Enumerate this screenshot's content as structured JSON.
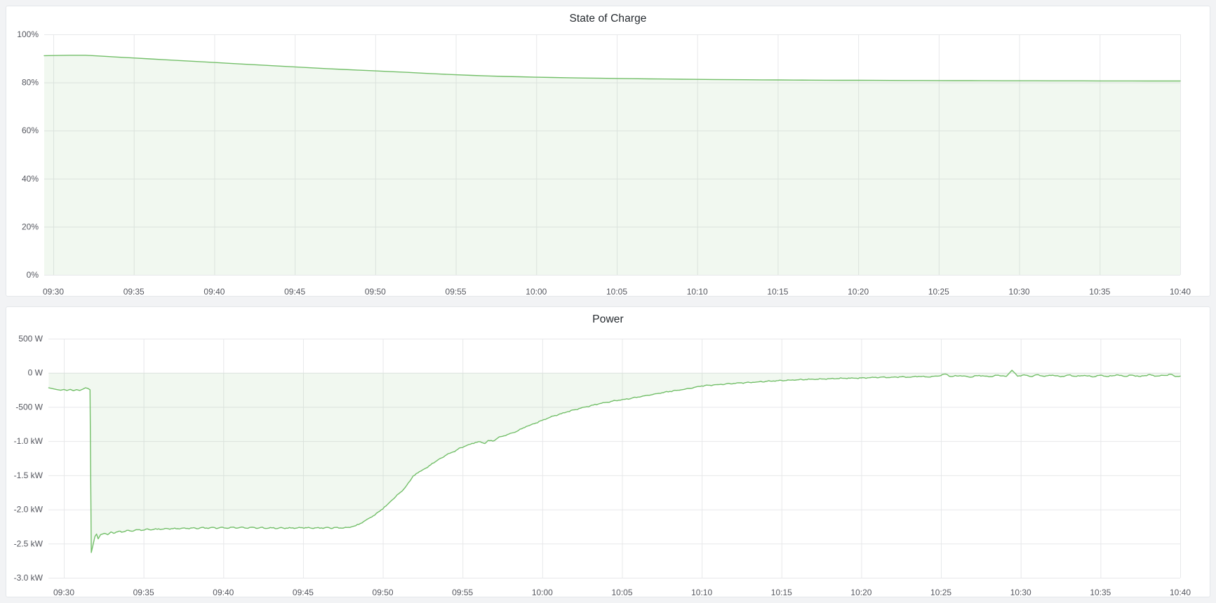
{
  "page": {
    "background_color": "#f2f3f5",
    "panel_background": "#ffffff",
    "grid_color": "#e7e8ea",
    "accent_green": "#73bf69"
  },
  "chart_data": [
    {
      "type": "area",
      "title": "State of Charge",
      "series_name": "State of Charge",
      "line_color": "#73bf69",
      "fill_color": "rgba(115,191,105,0.10)",
      "fill_baseline": 0,
      "noise_amplitude": 0,
      "legend_position": "none",
      "grid": true,
      "y_axis": {
        "min": 0,
        "max": 100,
        "tick_values": [
          100,
          80,
          60,
          40,
          20,
          0
        ],
        "tick_labels": [
          "100%",
          "80%",
          "60%",
          "40%",
          "20%",
          "0%"
        ]
      },
      "x_axis": {
        "start": "09:30",
        "end": "10:40",
        "tick_minutes": [
          0,
          5,
          10,
          15,
          20,
          25,
          30,
          35,
          40,
          45,
          50,
          55,
          60,
          65,
          70
        ],
        "tick_labels": [
          "09:30",
          "09:35",
          "09:40",
          "09:45",
          "09:50",
          "09:55",
          "10:00",
          "10:05",
          "10:10",
          "10:15",
          "10:20",
          "10:25",
          "10:30",
          "10:35",
          "10:40"
        ]
      },
      "points": [
        [
          -0.6,
          91.15
        ],
        [
          0,
          91.2
        ],
        [
          1,
          91.3
        ],
        [
          1.6,
          91.32
        ],
        [
          2,
          91.3
        ],
        [
          3,
          90.92
        ],
        [
          4,
          90.55
        ],
        [
          5,
          90.18
        ],
        [
          6,
          89.8
        ],
        [
          7,
          89.42
        ],
        [
          8,
          89.05
        ],
        [
          9,
          88.68
        ],
        [
          10,
          88.3
        ],
        [
          11,
          87.93
        ],
        [
          12,
          87.56
        ],
        [
          13,
          87.2
        ],
        [
          14,
          86.83
        ],
        [
          15,
          86.46
        ],
        [
          16,
          86.1
        ],
        [
          17,
          85.75
        ],
        [
          18,
          85.42
        ],
        [
          19,
          85.1
        ],
        [
          20,
          84.8
        ],
        [
          21,
          84.5
        ],
        [
          22,
          84.2
        ],
        [
          23,
          83.85
        ],
        [
          24,
          83.5
        ],
        [
          25,
          83.2
        ],
        [
          26,
          82.95
        ],
        [
          27,
          82.72
        ],
        [
          28,
          82.52
        ],
        [
          29,
          82.35
        ],
        [
          30,
          82.2
        ],
        [
          31,
          82.06
        ],
        [
          32,
          81.94
        ],
        [
          33,
          81.84
        ],
        [
          34,
          81.74
        ],
        [
          35,
          81.65
        ],
        [
          36,
          81.57
        ],
        [
          37,
          81.49
        ],
        [
          38,
          81.42
        ],
        [
          39,
          81.35
        ],
        [
          40,
          81.29
        ],
        [
          41,
          81.23
        ],
        [
          42,
          81.18
        ],
        [
          43,
          81.13
        ],
        [
          44,
          81.08
        ],
        [
          45,
          81.04
        ],
        [
          46,
          81.0
        ],
        [
          47,
          80.97
        ],
        [
          48,
          80.94
        ],
        [
          49,
          80.91
        ],
        [
          50,
          80.89
        ],
        [
          51,
          80.87
        ],
        [
          52,
          80.85
        ],
        [
          53,
          80.83
        ],
        [
          54,
          80.81
        ],
        [
          55,
          80.79
        ],
        [
          56,
          80.77
        ],
        [
          57,
          80.75
        ],
        [
          58,
          80.73
        ],
        [
          59,
          80.71
        ],
        [
          60,
          80.7
        ],
        [
          61,
          80.69
        ],
        [
          62,
          80.68
        ],
        [
          63,
          80.67
        ],
        [
          64,
          80.66
        ],
        [
          65,
          80.65
        ],
        [
          66,
          80.64
        ],
        [
          67,
          80.63
        ],
        [
          68,
          80.62
        ],
        [
          69,
          80.61
        ],
        [
          70,
          80.6
        ]
      ]
    },
    {
      "type": "area",
      "title": "Power",
      "series_name": "Power",
      "line_color": "#73bf69",
      "fill_color": "rgba(115,191,105,0.10)",
      "fill_baseline": 0,
      "noise_amplitude": 10,
      "legend_position": "none",
      "grid": true,
      "y_axis": {
        "min": -3000,
        "max": 500,
        "tick_values": [
          500,
          0,
          -500,
          -1000,
          -1500,
          -2000,
          -2500,
          -3000
        ],
        "tick_labels": [
          "500 W",
          "0 W",
          "-500 W",
          "-1.0 kW",
          "-1.5 kW",
          "-2.0 kW",
          "-2.5 kW",
          "-3.0 kW"
        ]
      },
      "x_axis": {
        "start": "09:30",
        "end": "10:40",
        "tick_minutes": [
          0,
          5,
          10,
          15,
          20,
          25,
          30,
          35,
          40,
          45,
          50,
          55,
          60,
          65,
          70
        ],
        "tick_labels": [
          "09:30",
          "09:35",
          "09:40",
          "09:45",
          "09:50",
          "09:55",
          "10:00",
          "10:05",
          "10:10",
          "10:15",
          "10:20",
          "10:25",
          "10:30",
          "10:35",
          "10:40"
        ]
      },
      "points": [
        [
          -0.95,
          -220
        ],
        [
          -0.7,
          -232
        ],
        [
          -0.45,
          -245
        ],
        [
          -0.2,
          -255
        ],
        [
          0,
          -243
        ],
        [
          0.2,
          -258
        ],
        [
          0.4,
          -242
        ],
        [
          0.6,
          -262
        ],
        [
          0.8,
          -246
        ],
        [
          1.0,
          -258
        ],
        [
          1.2,
          -238
        ],
        [
          1.35,
          -220
        ],
        [
          1.5,
          -228
        ],
        [
          1.64,
          -248
        ],
        [
          1.72,
          -2630
        ],
        [
          1.85,
          -2500
        ],
        [
          1.95,
          -2395
        ],
        [
          2.05,
          -2360
        ],
        [
          2.15,
          -2430
        ],
        [
          2.3,
          -2370
        ],
        [
          2.55,
          -2350
        ],
        [
          2.75,
          -2370
        ],
        [
          2.95,
          -2330
        ],
        [
          3.2,
          -2345
        ],
        [
          3.45,
          -2318
        ],
        [
          3.7,
          -2330
        ],
        [
          3.95,
          -2305
        ],
        [
          4.25,
          -2318
        ],
        [
          4.55,
          -2295
        ],
        [
          4.85,
          -2308
        ],
        [
          5.15,
          -2288
        ],
        [
          5.45,
          -2300
        ],
        [
          5.75,
          -2282
        ],
        [
          6.05,
          -2295
        ],
        [
          6.35,
          -2278
        ],
        [
          6.65,
          -2290
        ],
        [
          6.95,
          -2272
        ],
        [
          7.25,
          -2286
        ],
        [
          7.55,
          -2270
        ],
        [
          7.85,
          -2284
        ],
        [
          8.15,
          -2266
        ],
        [
          8.45,
          -2280
        ],
        [
          8.75,
          -2262
        ],
        [
          9.05,
          -2278
        ],
        [
          9.35,
          -2262
        ],
        [
          9.65,
          -2276
        ],
        [
          9.95,
          -2260
        ],
        [
          10.25,
          -2276
        ],
        [
          10.55,
          -2260
        ],
        [
          10.85,
          -2274
        ],
        [
          11.15,
          -2258
        ],
        [
          11.45,
          -2274
        ],
        [
          11.75,
          -2260
        ],
        [
          12.05,
          -2276
        ],
        [
          12.35,
          -2262
        ],
        [
          12.65,
          -2278
        ],
        [
          12.95,
          -2264
        ],
        [
          13.25,
          -2280
        ],
        [
          13.55,
          -2266
        ],
        [
          13.85,
          -2280
        ],
        [
          14.15,
          -2264
        ],
        [
          14.45,
          -2278
        ],
        [
          14.75,
          -2262
        ],
        [
          15.05,
          -2276
        ],
        [
          15.35,
          -2262
        ],
        [
          15.65,
          -2278
        ],
        [
          15.95,
          -2264
        ],
        [
          16.25,
          -2278
        ],
        [
          16.55,
          -2262
        ],
        [
          16.85,
          -2276
        ],
        [
          17.15,
          -2262
        ],
        [
          17.45,
          -2274
        ],
        [
          17.75,
          -2264
        ],
        [
          18.0,
          -2258
        ],
        [
          18.3,
          -2238
        ],
        [
          18.6,
          -2205
        ],
        [
          18.9,
          -2162
        ],
        [
          19.2,
          -2120
        ],
        [
          19.5,
          -2082
        ],
        [
          19.9,
          -2005
        ],
        [
          20.2,
          -1950
        ],
        [
          20.5,
          -1880
        ],
        [
          20.8,
          -1815
        ],
        [
          21.1,
          -1750
        ],
        [
          21.4,
          -1680
        ],
        [
          21.7,
          -1585
        ],
        [
          21.9,
          -1510
        ],
        [
          22.2,
          -1465
        ],
        [
          22.5,
          -1420
        ],
        [
          22.8,
          -1385
        ],
        [
          23.1,
          -1325
        ],
        [
          23.4,
          -1285
        ],
        [
          23.7,
          -1245
        ],
        [
          24.0,
          -1200
        ],
        [
          24.3,
          -1168
        ],
        [
          24.6,
          -1135
        ],
        [
          24.9,
          -1095
        ],
        [
          25.2,
          -1070
        ],
        [
          25.5,
          -1045
        ],
        [
          25.8,
          -1020
        ],
        [
          26.1,
          -1008
        ],
        [
          26.4,
          -1035
        ],
        [
          26.6,
          -990
        ],
        [
          26.9,
          -1000
        ],
        [
          27.2,
          -955
        ],
        [
          27.5,
          -930
        ],
        [
          27.8,
          -905
        ],
        [
          28.1,
          -880
        ],
        [
          28.4,
          -858
        ],
        [
          28.7,
          -820
        ],
        [
          29.0,
          -785
        ],
        [
          29.3,
          -760
        ],
        [
          29.6,
          -735
        ],
        [
          30.0,
          -695
        ],
        [
          30.4,
          -660
        ],
        [
          30.8,
          -625
        ],
        [
          31.2,
          -598
        ],
        [
          31.6,
          -568
        ],
        [
          32.0,
          -542
        ],
        [
          32.4,
          -518
        ],
        [
          32.8,
          -495
        ],
        [
          33.2,
          -472
        ],
        [
          33.6,
          -450
        ],
        [
          34.0,
          -432
        ],
        [
          34.4,
          -415
        ],
        [
          34.8,
          -400
        ],
        [
          35.2,
          -388
        ],
        [
          35.6,
          -372
        ],
        [
          36.0,
          -355
        ],
        [
          36.5,
          -332
        ],
        [
          37.0,
          -312
        ],
        [
          37.5,
          -292
        ],
        [
          38.0,
          -272
        ],
        [
          38.5,
          -255
        ],
        [
          39.0,
          -236
        ],
        [
          39.5,
          -215
        ],
        [
          40.0,
          -192
        ],
        [
          40.5,
          -182
        ],
        [
          41.0,
          -172
        ],
        [
          41.5,
          -163
        ],
        [
          42.0,
          -155
        ],
        [
          42.5,
          -147
        ],
        [
          43.0,
          -140
        ],
        [
          43.5,
          -133
        ],
        [
          44.0,
          -126
        ],
        [
          44.5,
          -119
        ],
        [
          45.0,
          -112
        ],
        [
          45.5,
          -107
        ],
        [
          46.0,
          -102
        ],
        [
          46.5,
          -98
        ],
        [
          47.0,
          -94
        ],
        [
          47.5,
          -90
        ],
        [
          48.0,
          -87
        ],
        [
          48.5,
          -84
        ],
        [
          49.0,
          -81
        ],
        [
          49.5,
          -78
        ],
        [
          50.0,
          -75
        ],
        [
          50.6,
          -70
        ],
        [
          51.2,
          -64
        ],
        [
          51.8,
          -70
        ],
        [
          52.4,
          -58
        ],
        [
          53.0,
          -66
        ],
        [
          53.6,
          -52
        ],
        [
          54.2,
          -62
        ],
        [
          54.8,
          -48
        ],
        [
          55.3,
          -18
        ],
        [
          55.6,
          -55
        ],
        [
          56.2,
          -42
        ],
        [
          56.8,
          -65
        ],
        [
          57.4,
          -38
        ],
        [
          58.0,
          -58
        ],
        [
          58.6,
          -35
        ],
        [
          59.1,
          -52
        ],
        [
          59.45,
          38
        ],
        [
          59.8,
          -50
        ],
        [
          60.2,
          -30
        ],
        [
          60.6,
          -55
        ],
        [
          61.0,
          -28
        ],
        [
          61.5,
          -52
        ],
        [
          62.0,
          -35
        ],
        [
          62.5,
          -58
        ],
        [
          63.0,
          -32
        ],
        [
          63.5,
          -52
        ],
        [
          64.0,
          -38
        ],
        [
          64.5,
          -60
        ],
        [
          65.0,
          -35
        ],
        [
          65.5,
          -55
        ],
        [
          66.0,
          -30
        ],
        [
          66.5,
          -52
        ],
        [
          67.0,
          -35
        ],
        [
          67.5,
          -55
        ],
        [
          68.0,
          -28
        ],
        [
          68.5,
          -48
        ],
        [
          69.0,
          -38
        ],
        [
          69.4,
          -20
        ],
        [
          69.7,
          -55
        ],
        [
          70.0,
          -48
        ]
      ]
    }
  ]
}
